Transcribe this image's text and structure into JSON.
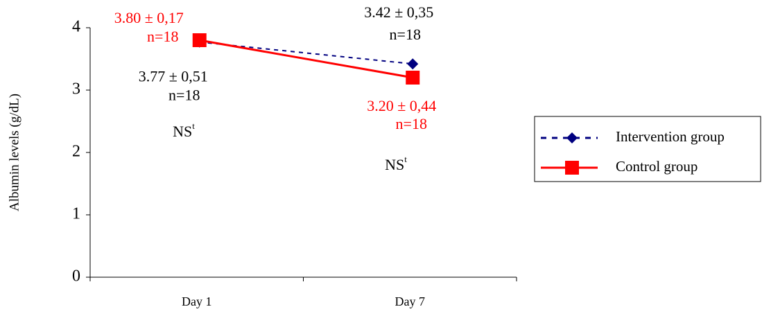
{
  "chart_data": {
    "type": "line",
    "y_label": "Albumin levels (g/dL)",
    "categories": [
      "Day 1",
      "Day 7"
    ],
    "series": [
      {
        "name": "Intervention group",
        "color": "#000080",
        "dashed": true,
        "marker": "diamond",
        "values": [
          3.77,
          3.42
        ],
        "value_labels": [
          "3.77 ± 0,51",
          "3.42 ± 0,35"
        ],
        "n_labels": [
          "n=18",
          "n=18"
        ]
      },
      {
        "name": "Control group",
        "color": "#ff0000",
        "dashed": false,
        "marker": "square",
        "values": [
          3.8,
          3.2
        ],
        "value_labels": [
          "3.80 ± 0,17",
          "3.20 ± 0,44"
        ],
        "n_labels": [
          "n=18",
          "n=18"
        ]
      }
    ],
    "annotations": [
      {
        "text": "NS",
        "superscript": "t"
      },
      {
        "text": "NS",
        "superscript": "t"
      }
    ],
    "ylim": [
      0,
      4
    ],
    "yticks": [
      0,
      1,
      2,
      3,
      4
    ],
    "grid": false,
    "legend": "right"
  }
}
